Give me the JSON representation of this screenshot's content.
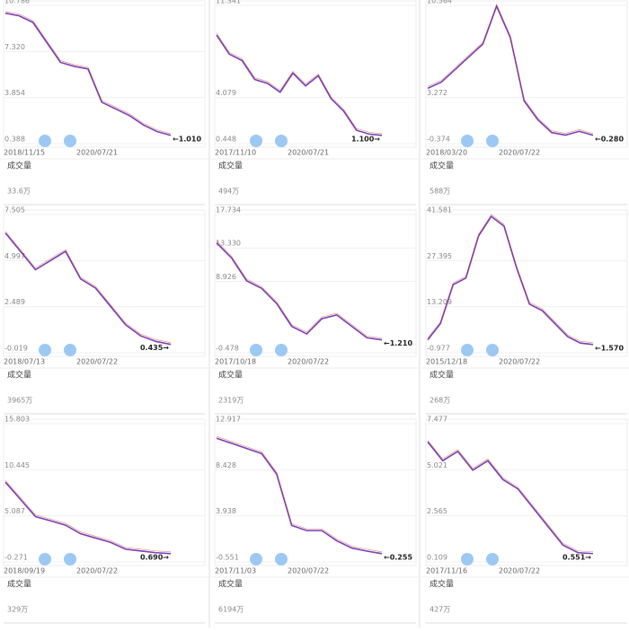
{
  "panels": [
    {
      "yticks": [
        {
          "value": 0.388,
          "label": "0.388"
        },
        {
          "value": 3.854,
          "label": "3.854"
        },
        {
          "value": 7.32,
          "label": "7.320"
        },
        {
          "value": 10.786,
          "label": "10.786"
        }
      ],
      "ylim": [
        0.388,
        10.786
      ],
      "start_date": "2018/11/15",
      "end_date": "2020/07/21",
      "last_price_label": "←1.010",
      "volume_title": "成交量",
      "volume_max": "33.6万",
      "close": [
        10.2,
        10.0,
        9.5,
        8.0,
        6.5,
        6.2,
        6.0,
        3.5,
        3.0,
        2.5,
        1.8,
        1.3,
        1.01
      ]
    },
    {
      "yticks": [
        {
          "value": 0.448,
          "label": "0.448"
        },
        {
          "value": 4.079,
          "label": "4.079"
        },
        {
          "value": 11.341,
          "label": "11.341"
        }
      ],
      "ylim": [
        0.448,
        11.341
      ],
      "start_date": "2017/11/10",
      "end_date": "2020/07/21",
      "last_price_label": "1.100→",
      "volume_title": "成交量",
      "volume_max": "494万",
      "close": [
        9.0,
        7.5,
        7.0,
        5.5,
        5.2,
        4.5,
        6.0,
        5.0,
        5.8,
        4.0,
        3.0,
        1.5,
        1.2,
        1.1
      ]
    },
    {
      "yticks": [
        {
          "value": -0.374,
          "label": "-0.374"
        },
        {
          "value": 3.272,
          "label": "3.272"
        },
        {
          "value": 10.564,
          "label": "10.564"
        }
      ],
      "ylim": [
        -0.374,
        10.564
      ],
      "start_date": "2018/03/20",
      "end_date": "2020/07/22",
      "last_price_label": "←0.280",
      "volume_title": "成交量",
      "volume_max": "588万",
      "close": [
        4.0,
        4.5,
        5.5,
        6.5,
        7.5,
        10.5,
        8.0,
        3.0,
        1.5,
        0.5,
        0.3,
        0.6,
        0.28
      ]
    },
    {
      "yticks": [
        {
          "value": -0.019,
          "label": "-0.019"
        },
        {
          "value": 2.489,
          "label": "2.489"
        },
        {
          "value": 4.997,
          "label": "4.997"
        },
        {
          "value": 7.505,
          "label": "7.505"
        }
      ],
      "ylim": [
        -0.019,
        7.505
      ],
      "start_date": "2018/07/13",
      "end_date": "2020/07/22",
      "last_price_label": "0.435→",
      "volume_title": "成交量",
      "volume_max": "3965万",
      "close": [
        6.5,
        5.5,
        4.5,
        5.0,
        5.5,
        4.0,
        3.5,
        2.5,
        1.5,
        0.9,
        0.6,
        0.435
      ]
    },
    {
      "yticks": [
        {
          "value": -0.478,
          "label": "-0.478"
        },
        {
          "value": 8.926,
          "label": "8.926"
        },
        {
          "value": 13.33,
          "label": "13.330"
        },
        {
          "value": 17.734,
          "label": "17.734"
        }
      ],
      "ylim": [
        -0.478,
        17.734
      ],
      "start_date": "2017/10/18",
      "end_date": "2020/07/22",
      "last_price_label": "←1.210",
      "volume_title": "成交量",
      "volume_max": "2319万",
      "close": [
        14,
        12,
        9,
        8,
        6,
        3,
        2,
        4,
        4.5,
        3,
        1.5,
        1.21
      ]
    },
    {
      "yticks": [
        {
          "value": -0.977,
          "label": "-0.977"
        },
        {
          "value": 13.209,
          "label": "13.209"
        },
        {
          "value": 27.395,
          "label": "27.395"
        },
        {
          "value": 41.581,
          "label": "41.581"
        }
      ],
      "ylim": [
        -0.977,
        41.581
      ],
      "start_date": "2015/12/18",
      "end_date": "2020/07/22",
      "last_price_label": "←1.570",
      "volume_title": "成交量",
      "volume_max": "268万",
      "close": [
        3,
        8,
        20,
        22,
        35,
        41,
        38,
        25,
        14,
        12,
        8,
        4,
        2,
        1.57
      ]
    },
    {
      "yticks": [
        {
          "value": -0.271,
          "label": "-0.271"
        },
        {
          "value": 5.087,
          "label": "5.087"
        },
        {
          "value": 10.445,
          "label": "10.445"
        },
        {
          "value": 15.803,
          "label": "15.803"
        }
      ],
      "ylim": [
        -0.271,
        15.803
      ],
      "start_date": "2018/09/19",
      "end_date": "2020/07/22",
      "last_price_label": "0.690→",
      "volume_title": "成交量",
      "volume_max": "329万",
      "close": [
        9,
        7,
        5,
        4.5,
        4,
        3,
        2.5,
        2,
        1.2,
        1,
        0.8,
        0.69
      ]
    },
    {
      "yticks": [
        {
          "value": -0.551,
          "label": "-0.551"
        },
        {
          "value": 3.938,
          "label": "3.938"
        },
        {
          "value": 8.428,
          "label": "8.428"
        },
        {
          "value": 12.917,
          "label": "12.917"
        }
      ],
      "ylim": [
        -0.551,
        12.917
      ],
      "start_date": "2017/11/03",
      "end_date": "2020/07/22",
      "last_price_label": "←0.255",
      "volume_title": "成交量",
      "volume_max": "6194万",
      "close": [
        11.5,
        11,
        10.5,
        10,
        8,
        3,
        2.5,
        2.5,
        1.5,
        0.8,
        0.5,
        0.255
      ]
    },
    {
      "yticks": [
        {
          "value": 0.109,
          "label": "0.109"
        },
        {
          "value": 2.565,
          "label": "2.565"
        },
        {
          "value": 5.021,
          "label": "5.021"
        },
        {
          "value": 7.477,
          "label": "7.477"
        }
      ],
      "ylim": [
        0.109,
        7.477
      ],
      "start_date": "2017/11/16",
      "end_date": "2020/07/22",
      "last_price_label": "0.551→",
      "volume_title": "成交量",
      "volume_max": "427万",
      "close": [
        6.5,
        5.5,
        6,
        5,
        5.5,
        4.5,
        4,
        3,
        2,
        1,
        0.6,
        0.551
      ]
    }
  ]
}
